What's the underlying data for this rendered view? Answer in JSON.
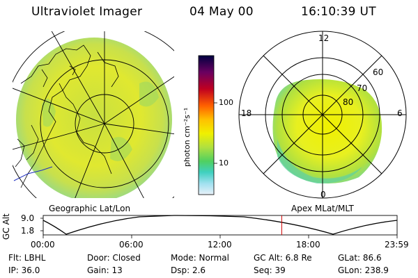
{
  "header": {
    "instrument": "Ultraviolet Imager",
    "date": "04 May 00",
    "time": "16:10:39 UT"
  },
  "left_panel": {
    "caption": "Geographic Lat/Lon"
  },
  "colorbar": {
    "unit_label": "photon cm⁻²s⁻¹",
    "tick_labels": [
      "100",
      "10"
    ],
    "colors": [
      "#000040",
      "#6a0060",
      "#c00020",
      "#ff6000",
      "#ffc000",
      "#f0f000",
      "#b0e040",
      "#50d060",
      "#40d0c0",
      "#a0e0f0",
      "#e8f0f8"
    ]
  },
  "right_panel": {
    "caption": "Apex MLat/MLT",
    "mlt_labels": {
      "top": "12",
      "left": "18",
      "right": "6",
      "bottom": "0"
    },
    "mlat_labels": [
      "60",
      "70",
      "80"
    ]
  },
  "altitude_strip": {
    "ylabel": "GC Alt",
    "y_ticks": [
      "9.0",
      "1.8"
    ],
    "x_ticks": [
      "00:00",
      "06:00",
      "12:00",
      "18:00",
      "23:59"
    ],
    "current_time_fraction": 0.674
  },
  "status": {
    "row1": {
      "filter": "Flt: LBHL",
      "door": "Door: Closed",
      "mode": "Mode: Normal",
      "gc_alt": "GC Alt: 6.8 Re",
      "glat": "GLat:  86.6"
    },
    "row2": {
      "ip": "IP: 36.0",
      "gain": "Gain: 13",
      "dsp": "Dsp:     2.6",
      "seq": "Seq: 39",
      "glon": "GLon: 238.9"
    }
  }
}
